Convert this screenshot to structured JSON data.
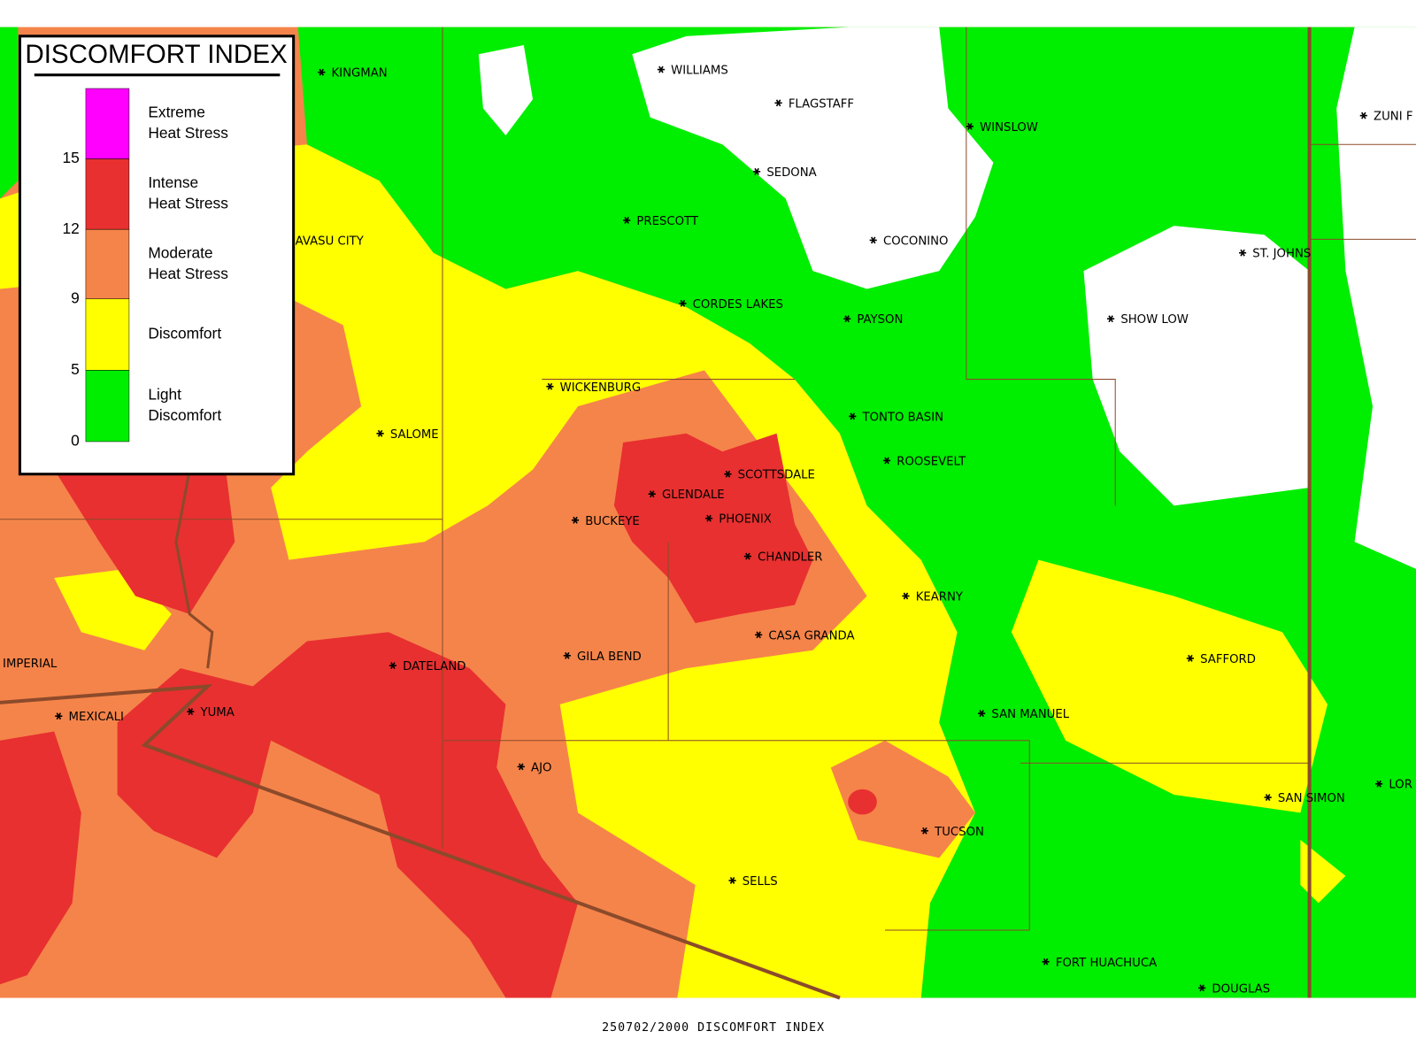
{
  "legend": {
    "title": "DISCOMFORT INDEX",
    "items": [
      {
        "label": [
          "Extreme",
          "Heat Stress"
        ],
        "color": "#ff00ff"
      },
      {
        "label": [
          "Intense",
          "Heat Stress"
        ],
        "color": "#e83030"
      },
      {
        "label": [
          "Moderate",
          "Heat Stress"
        ],
        "color": "#f5844a"
      },
      {
        "label": [
          "Discomfort"
        ],
        "color": "#ffff00"
      },
      {
        "label": [
          "Light",
          "Discomfort"
        ],
        "color": "#00ee00"
      }
    ],
    "ticks": [
      15,
      12,
      9,
      5,
      0
    ]
  },
  "cities": [
    "KINGMAN",
    "WILLIAMS",
    "FLAGSTAFF",
    "WINSLOW",
    "ZUNI F",
    "SEDONA",
    "PRESCOTT",
    "COCONINO",
    "ST. JOHNS",
    "AVASU CITY",
    "CORDES LAKES",
    "PAYSON",
    "SHOW LOW",
    "WICKENBURG",
    "TONTO BASIN",
    "SALOME",
    "ROOSEVELT",
    "SCOTTSDALE",
    "GLENDALE",
    "BUCKEYE",
    "PHOENIX",
    "CHANDLER",
    "KEARNY",
    "CASA GRANDA",
    "GILA BEND",
    "IMPERIAL",
    "SAFFORD",
    "DATELAND",
    "YUMA",
    "MEXICALI",
    "SAN MANUEL",
    "AJO",
    "SAN SIMON",
    "LOR",
    "TUCSON",
    "SELLS",
    "FORT HUACHUCA",
    "DOUGLAS"
  ],
  "caption": "250702/2000 DISCOMFORT INDEX"
}
